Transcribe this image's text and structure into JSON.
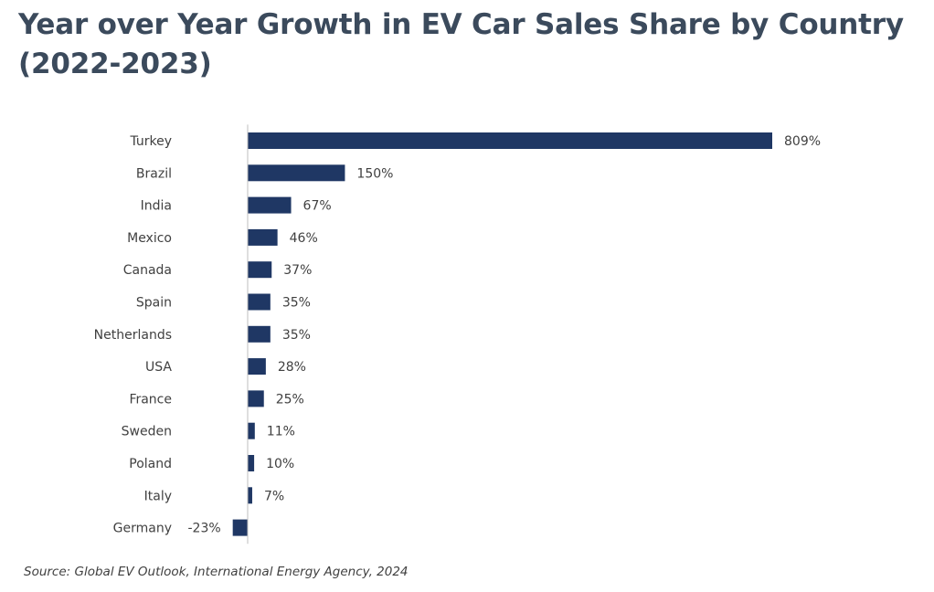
{
  "title": "Year over Year Growth in EV Car Sales Share by Country (2022-2023)",
  "source": "Source: Global EV Outlook, International Energy Agency, 2024",
  "colors": {
    "bar": "#1f3764",
    "axis": "#bfbfbf",
    "text": "#404040",
    "title": "#3b4a5c"
  },
  "chart_data": {
    "type": "bar",
    "orientation": "horizontal",
    "title": "Year over Year Growth in EV Car Sales Share by Country (2022-2023)",
    "xlabel": "",
    "ylabel": "",
    "unit": "%",
    "categories": [
      "Turkey",
      "Brazil",
      "India",
      "Mexico",
      "Canada",
      "Spain",
      "Netherlands",
      "USA",
      "France",
      "Sweden",
      "Poland",
      "Italy",
      "Germany"
    ],
    "values": [
      809,
      150,
      67,
      46,
      37,
      35,
      35,
      28,
      25,
      11,
      10,
      7,
      -23
    ],
    "data_labels": [
      "809%",
      "150%",
      "67%",
      "46%",
      "37%",
      "35%",
      "35%",
      "28%",
      "25%",
      "11%",
      "10%",
      "7%",
      "-23%"
    ],
    "xlim": [
      -23,
      809
    ],
    "grid": false,
    "legend": "none"
  }
}
